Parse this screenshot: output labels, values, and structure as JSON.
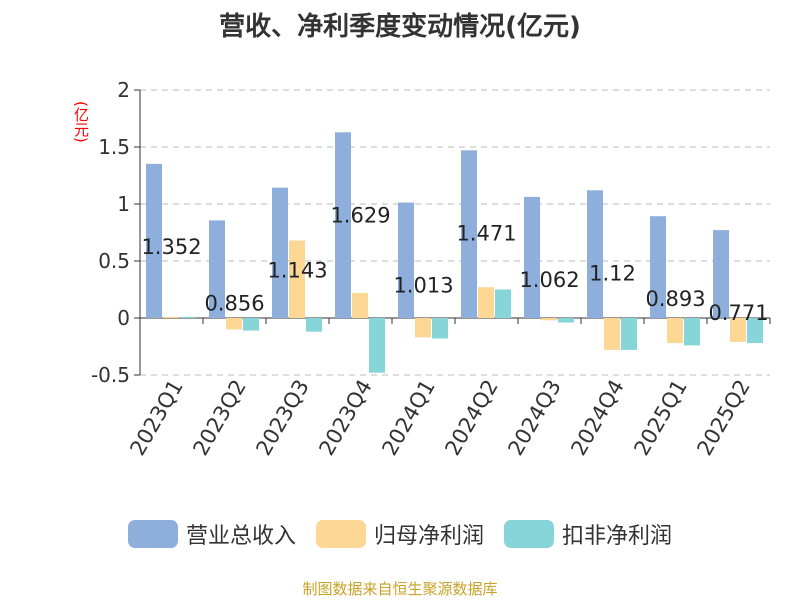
{
  "chart_data": {
    "type": "bar",
    "title": "营收、净利季度变动情况(亿元)",
    "y_unit": "(亿元)",
    "categories": [
      "2023Q1",
      "2023Q2",
      "2023Q3",
      "2023Q4",
      "2024Q1",
      "2024Q2",
      "2024Q3",
      "2024Q4",
      "2025Q1",
      "2025Q2"
    ],
    "series": [
      {
        "name": "营业总收入",
        "color": "#8eaedb",
        "values": [
          1.352,
          0.856,
          1.143,
          1.629,
          1.013,
          1.471,
          1.062,
          1.12,
          0.893,
          0.771
        ]
      },
      {
        "name": "归母净利润",
        "color": "#fdd794",
        "values": [
          0.01,
          -0.1,
          0.68,
          0.22,
          -0.17,
          0.27,
          -0.02,
          -0.28,
          -0.22,
          -0.21
        ]
      },
      {
        "name": "扣非净利润",
        "color": "#86d5d8",
        "values": [
          0.01,
          -0.11,
          -0.12,
          -0.48,
          -0.18,
          0.25,
          -0.04,
          -0.28,
          -0.24,
          -0.22
        ]
      }
    ],
    "data_labels": [
      "1.352",
      "0.856",
      "1.143",
      "1.629",
      "1.013",
      "1.471",
      "1.062",
      "1.12",
      "0.893",
      "0.771"
    ],
    "y_ticks": [
      "-0.5",
      "0",
      "0.5",
      "1",
      "1.5",
      "2"
    ],
    "ylim": [
      -0.5,
      2
    ],
    "grid": true,
    "legend_position": "bottom"
  },
  "source": "制图数据来自恒生聚源数据库"
}
